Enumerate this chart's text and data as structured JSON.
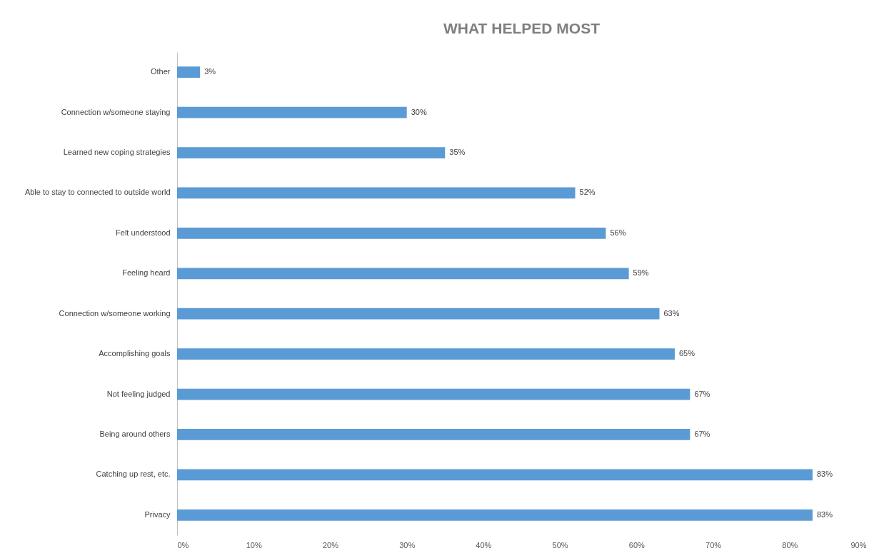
{
  "chart_data": {
    "type": "bar",
    "orientation": "horizontal",
    "title": "WHAT HELPED MOST",
    "categories": [
      "Other",
      "Connection w/someone staying",
      "Learned new coping strategies",
      "Able to stay to connected to outside world",
      "Felt understood",
      "Feeling heard",
      "Connection w/someone working",
      "Accomplishing goals",
      "Not feeling judged",
      "Being around others",
      "Catching up rest, etc.",
      "Privacy"
    ],
    "values": [
      3,
      30,
      35,
      52,
      56,
      59,
      63,
      65,
      67,
      67,
      83,
      83
    ],
    "value_labels": [
      "3%",
      "30%",
      "35%",
      "52%",
      "56%",
      "59%",
      "63%",
      "65%",
      "67%",
      "67%",
      "83%",
      "83%"
    ],
    "color": "#5b9bd5",
    "xlim": [
      0,
      90
    ],
    "xticks": [
      {
        "value": 0,
        "label": "0%"
      },
      {
        "value": 10,
        "label": "10%"
      },
      {
        "value": 20,
        "label": "20%"
      },
      {
        "value": 30,
        "label": "30%"
      },
      {
        "value": 40,
        "label": "40%"
      },
      {
        "value": 50,
        "label": "50%"
      },
      {
        "value": 60,
        "label": "60%"
      },
      {
        "value": 70,
        "label": "70%"
      },
      {
        "value": 80,
        "label": "80%"
      },
      {
        "value": 90,
        "label": "90%"
      }
    ],
    "grid": false
  }
}
